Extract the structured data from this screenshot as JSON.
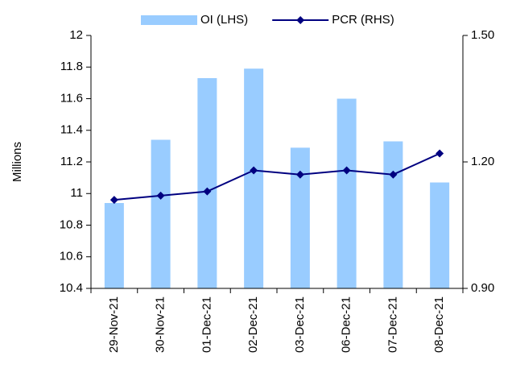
{
  "chart_data": {
    "type": "bar-line",
    "y_label": "Millions",
    "categories": [
      "29-Nov-21",
      "30-Nov-21",
      "01-Dec-21",
      "02-Dec-21",
      "03-Dec-21",
      "06-Dec-21",
      "07-Dec-21",
      "08-Dec-21"
    ],
    "series": [
      {
        "name": "OI (LHS)",
        "type": "bar",
        "color": "#99ccff",
        "values": [
          10.94,
          11.34,
          11.73,
          11.79,
          11.29,
          11.6,
          11.33,
          11.07
        ]
      },
      {
        "name": "PCR (RHS)",
        "type": "line",
        "color": "#000080",
        "axis": "y2",
        "values": [
          1.11,
          1.12,
          1.13,
          1.18,
          1.17,
          1.18,
          1.17,
          1.22
        ]
      }
    ],
    "ylim": [
      10.4,
      12
    ],
    "yticks": [
      10.4,
      10.6,
      10.8,
      11,
      11.2,
      11.4,
      11.6,
      11.8,
      12
    ],
    "y2lim": [
      0.9,
      1.5
    ],
    "y2ticks": [
      {
        "value": 0.9,
        "label": "0.90"
      },
      {
        "value": 1.2,
        "label": "1.20"
      },
      {
        "value": 1.5,
        "label": "1.50"
      }
    ],
    "grid": false,
    "legend": "top"
  }
}
